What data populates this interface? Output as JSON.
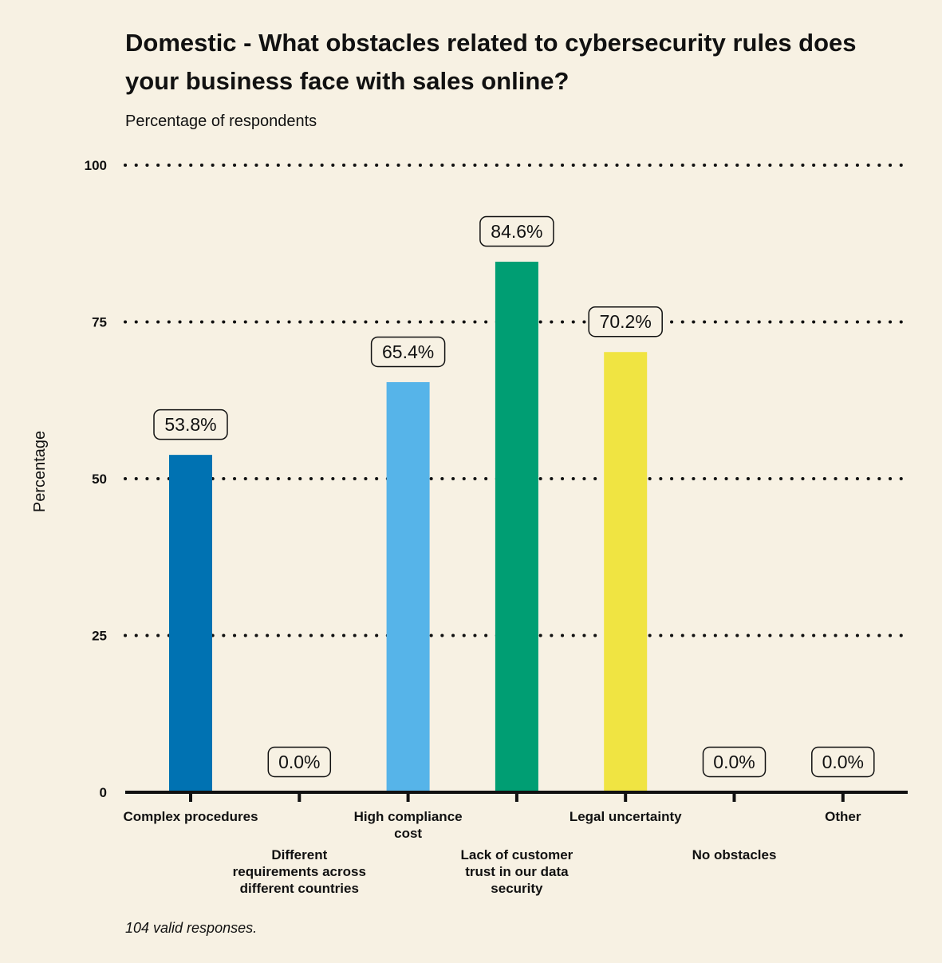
{
  "chart_data": {
    "type": "bar",
    "title": "Domestic - What obstacles related to cybersecurity rules does your business face with sales online?",
    "subtitle": "Percentage of respondents",
    "ylabel": "Percentage",
    "xlabel": "",
    "ylim": [
      0,
      100
    ],
    "yticks": [
      0,
      25,
      50,
      75,
      100
    ],
    "grid": true,
    "grid_style": "dotted",
    "categories": [
      "Complex procedures",
      "Different requirements across different countries",
      "High compliance cost",
      "Lack of customer trust in our data security",
      "Legal uncertainty",
      "No obstacles",
      "Other"
    ],
    "category_label_lines": [
      [
        "Complex procedures"
      ],
      [
        "Different",
        "requirements across",
        "different countries"
      ],
      [
        "High compliance",
        "cost"
      ],
      [
        "Lack of customer",
        "trust in our data",
        "security"
      ],
      [
        "Legal uncertainty"
      ],
      [
        "No obstacles"
      ],
      [
        "Other"
      ]
    ],
    "values": [
      53.8,
      0.0,
      65.4,
      84.6,
      70.2,
      0.0,
      0.0
    ],
    "data_labels": [
      "53.8%",
      "0.0%",
      "65.4%",
      "84.6%",
      "70.2%",
      "0.0%",
      "0.0%"
    ],
    "colors": [
      "#0072b2",
      "#e69f00",
      "#56b4e9",
      "#009e73",
      "#f0e442",
      "#d55e00",
      "#cc79a7"
    ],
    "footnote": "104 valid responses."
  }
}
